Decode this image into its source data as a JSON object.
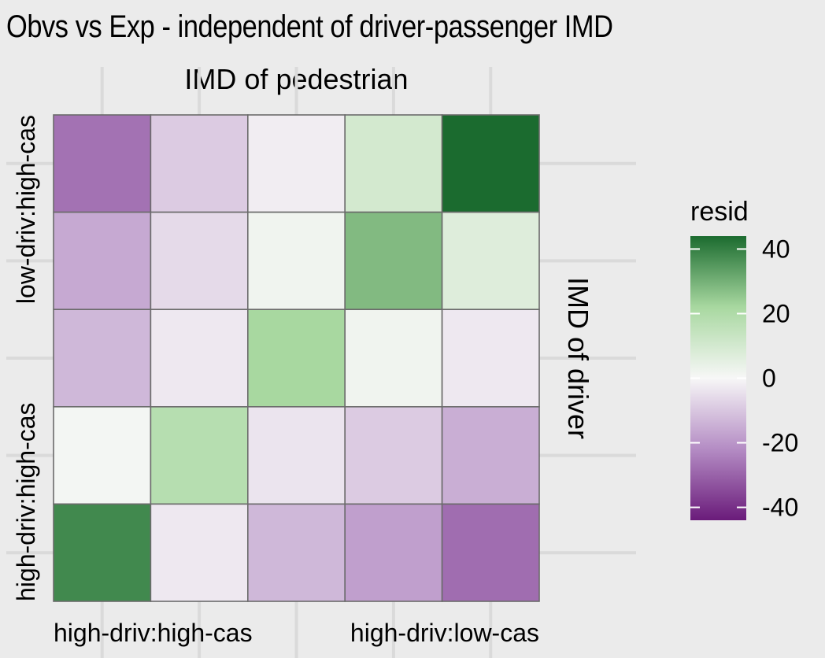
{
  "chart_data": {
    "type": "heatmap",
    "title": "Obvs vs Exp - independent of driver-passenger IMD",
    "x_axis_title": "IMD of pedestrian",
    "y_axis_title": "IMD of driver",
    "x_tick_labels": [
      "high-driv:high-cas",
      "high-driv:low-cas"
    ],
    "y_tick_labels": [
      "low-driv:high-cas",
      "high-driv:high-cas"
    ],
    "legend": {
      "title": "resid",
      "ticks": [
        40,
        20,
        0,
        -20,
        -40
      ],
      "range": [
        -44,
        44
      ],
      "colors": {
        "low": "#6a1b7a",
        "mid": "#f7f7f7",
        "high": "#1b6b2f"
      },
      "placement": "right"
    },
    "grid": true,
    "values": [
      [
        -27,
        -9,
        -2,
        10,
        44
      ],
      [
        -16,
        -6,
        2,
        28,
        7
      ],
      [
        -13,
        -3,
        22,
        2,
        -3
      ],
      [
        1,
        18,
        -4,
        -9,
        -15
      ],
      [
        38,
        -3,
        -13,
        -18,
        -28
      ]
    ]
  }
}
